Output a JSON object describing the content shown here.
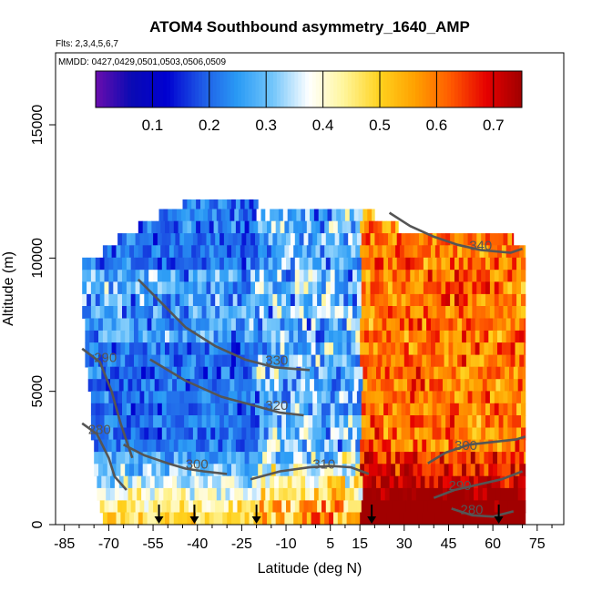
{
  "chart_data": {
    "type": "heatmap",
    "title": "ATOM4 Southbound asymmetry_1640_AMP",
    "flights_note": "Flts: 2,3,4,5,6,7",
    "dates_note": "MMDD: 0427,0429,0501,0503,0506,0509",
    "xlabel": "Latitude (deg N)",
    "ylabel": "Altitude (m)",
    "xlim": [
      -88,
      84
    ],
    "ylim": [
      0,
      17700
    ],
    "x_ticks": [
      -85,
      -70,
      -55,
      -40,
      -25,
      -10,
      5,
      15,
      30,
      45,
      60,
      75
    ],
    "x_tick_labels": [
      "-85",
      "-70",
      "-55",
      "-40",
      "-25",
      "-10",
      "5",
      "15",
      "30",
      "45",
      "60",
      "75"
    ],
    "y_ticks": [
      0,
      5000,
      10000,
      15000
    ],
    "y_tick_labels": [
      "0",
      "5000",
      "10000",
      "15000"
    ],
    "colorbar": {
      "range": [
        0,
        0.75
      ],
      "ticks": [
        0.1,
        0.2,
        0.3,
        0.4,
        0.5,
        0.6,
        0.7
      ],
      "tick_labels": [
        "0.1",
        "0.2",
        "0.3",
        "0.4",
        "0.5",
        "0.6",
        "0.7"
      ],
      "colors": [
        "#6a0dad",
        "#0a0ab4",
        "#0000d0",
        "#1e5ae6",
        "#2a9bf5",
        "#74c6fb",
        "#ffffff",
        "#fff59a",
        "#ffd21e",
        "#ffa000",
        "#ff5a00",
        "#e60000",
        "#a00000"
      ]
    },
    "profile_bins": [
      {
        "alt": 11970,
        "lat_min": -45,
        "lat_max": -19.5
      },
      {
        "alt": 11610,
        "lat_min": -53,
        "lat_max": 20
      },
      {
        "alt": 11160,
        "lat_min": -60,
        "lat_max": 28
      },
      {
        "alt": 10700,
        "lat_min": -67,
        "lat_max": 67
      },
      {
        "alt": 10250,
        "lat_min": -72,
        "lat_max": 71
      },
      {
        "alt": 9790,
        "lat_min": -79,
        "lat_max": 71
      },
      {
        "alt": 9330,
        "lat_min": -79,
        "lat_max": 71
      },
      {
        "alt": 8880,
        "lat_min": -79,
        "lat_max": 71
      },
      {
        "alt": 8420,
        "lat_min": -79,
        "lat_max": 71
      },
      {
        "alt": 7970,
        "lat_min": -79,
        "lat_max": 71
      },
      {
        "alt": 7510,
        "lat_min": -78,
        "lat_max": 71
      },
      {
        "alt": 7050,
        "lat_min": -78,
        "lat_max": 71
      },
      {
        "alt": 6600,
        "lat_min": -78,
        "lat_max": 71
      },
      {
        "alt": 6140,
        "lat_min": -78,
        "lat_max": 71
      },
      {
        "alt": 5690,
        "lat_min": -77,
        "lat_max": 71
      },
      {
        "alt": 5230,
        "lat_min": -77,
        "lat_max": 71
      },
      {
        "alt": 4780,
        "lat_min": -76,
        "lat_max": 71
      },
      {
        "alt": 4320,
        "lat_min": -76,
        "lat_max": 71
      },
      {
        "alt": 3870,
        "lat_min": -76,
        "lat_max": 71
      },
      {
        "alt": 3410,
        "lat_min": -76,
        "lat_max": 71
      },
      {
        "alt": 2960,
        "lat_min": -75,
        "lat_max": 71
      },
      {
        "alt": 2500,
        "lat_min": -75,
        "lat_max": 71
      },
      {
        "alt": 2050,
        "lat_min": -75,
        "lat_max": 71
      },
      {
        "alt": 1590,
        "lat_min": -74,
        "lat_max": 71
      },
      {
        "alt": 1140,
        "lat_min": -74,
        "lat_max": 71
      },
      {
        "alt": 680,
        "lat_min": -73,
        "lat_max": 71
      },
      {
        "alt": 230,
        "lat_min": -72,
        "lat_max": 71
      }
    ],
    "contours": [
      {
        "value": 280,
        "label": "280",
        "label_at": [
          -77,
          3400
        ],
        "points": [
          [
            -79,
            3800
          ],
          [
            -74,
            3400
          ],
          [
            -70,
            2500
          ],
          [
            -68,
            1800
          ],
          [
            -64,
            1300
          ]
        ]
      },
      {
        "value": 280,
        "label": "280",
        "label_at": [
          49,
          400
        ],
        "points": [
          [
            46,
            600
          ],
          [
            53,
            350
          ],
          [
            60,
            300
          ],
          [
            67,
            500
          ]
        ]
      },
      {
        "value": 290,
        "label": "290",
        "label_at": [
          -75,
          6100
        ],
        "points": [
          [
            -79,
            6600
          ],
          [
            -73,
            6100
          ],
          [
            -69,
            5000
          ],
          [
            -66,
            3800
          ],
          [
            -62,
            2500
          ]
        ]
      },
      {
        "value": 290,
        "label": "290",
        "label_at": [
          45,
          1300
        ],
        "points": [
          [
            40,
            1000
          ],
          [
            47,
            1300
          ],
          [
            55,
            1500
          ],
          [
            63,
            1700
          ],
          [
            70,
            2000
          ]
        ]
      },
      {
        "value": 300,
        "label": "300",
        "label_at": [
          -44,
          2100
        ],
        "points": [
          [
            -65,
            3000
          ],
          [
            -58,
            2600
          ],
          [
            -50,
            2300
          ],
          [
            -44,
            2100
          ],
          [
            -38,
            2000
          ],
          [
            -30,
            1900
          ]
        ]
      },
      {
        "value": 300,
        "label": "300",
        "label_at": [
          47,
          2800
        ],
        "points": [
          [
            38,
            2300
          ],
          [
            44,
            2700
          ],
          [
            52,
            3000
          ],
          [
            60,
            3100
          ],
          [
            68,
            3200
          ],
          [
            71,
            3300
          ]
        ]
      },
      {
        "value": 310,
        "label": "310",
        "label_at": [
          -1,
          2100
        ],
        "points": [
          [
            -22,
            1700
          ],
          [
            -12,
            2000
          ],
          [
            -2,
            2150
          ],
          [
            5,
            2200
          ],
          [
            12,
            2150
          ],
          [
            18,
            1900
          ]
        ]
      },
      {
        "value": 320,
        "label": "320",
        "label_at": [
          -17,
          4300
        ],
        "points": [
          [
            -56,
            6200
          ],
          [
            -44,
            5400
          ],
          [
            -32,
            4800
          ],
          [
            -22,
            4500
          ],
          [
            -12,
            4200
          ],
          [
            -4,
            4100
          ]
        ]
      },
      {
        "value": 330,
        "label": "330",
        "label_at": [
          -17,
          6000
        ],
        "points": [
          [
            -60,
            9200
          ],
          [
            -52,
            8300
          ],
          [
            -44,
            7400
          ],
          [
            -34,
            6700
          ],
          [
            -24,
            6200
          ],
          [
            -14,
            5900
          ],
          [
            -2,
            5800
          ]
        ]
      },
      {
        "value": 340,
        "label": "340",
        "label_at": [
          52,
          10300
        ],
        "points": [
          [
            25,
            11700
          ],
          [
            32,
            11200
          ],
          [
            40,
            10800
          ],
          [
            48,
            10500
          ],
          [
            56,
            10300
          ],
          [
            66,
            10200
          ],
          [
            70,
            10350
          ]
        ]
      }
    ],
    "flight_markers_lat": [
      -53,
      -41,
      -20,
      19,
      62
    ]
  }
}
